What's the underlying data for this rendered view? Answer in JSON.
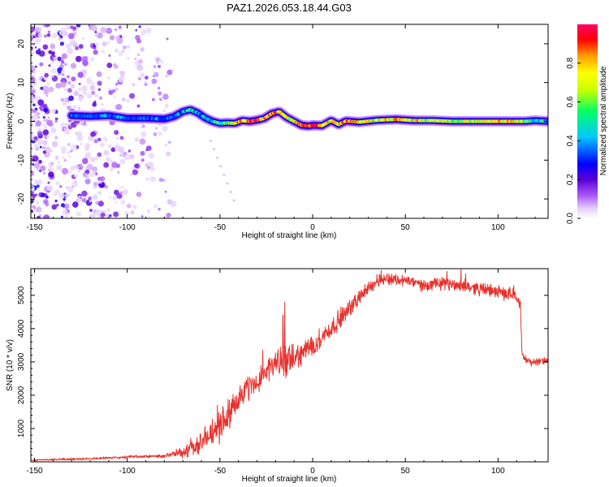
{
  "title": "PAZ1.2026.053.18.44.G03",
  "chart_data": [
    {
      "type": "heatmap",
      "title": "PAZ1.2026.053.18.44.G03",
      "xlabel": "Height of straight line (km)",
      "ylabel": "Frequency (Hz)",
      "xlim": [
        -152,
        127
      ],
      "ylim": [
        -25,
        25
      ],
      "x_ticks": [
        -150,
        -100,
        -50,
        0,
        50,
        100
      ],
      "y_ticks": [
        -20,
        -10,
        0,
        10,
        20
      ],
      "colorbar": {
        "label": "Normalized spectral amplitude",
        "range": [
          0,
          1
        ],
        "ticks": [
          0.0,
          0.2,
          0.4,
          0.6,
          0.8
        ],
        "colors": [
          "#ffffff",
          "#e6d0ff",
          "#a855f7",
          "#5b00d6",
          "#0000ff",
          "#00c8ff",
          "#00ff66",
          "#c8ff00",
          "#ffff00",
          "#ff9900",
          "#ff0000",
          "#ff0066"
        ]
      },
      "ridge": {
        "x": [
          -130,
          -120,
          -110,
          -100,
          -90,
          -80,
          -75,
          -70,
          -66,
          -62,
          -58,
          -54,
          -50,
          -46,
          -42,
          -38,
          -34,
          -30,
          -26,
          -22,
          -18,
          -14,
          -10,
          -6,
          -2,
          0,
          5,
          10,
          14,
          18,
          25,
          35,
          45,
          55,
          65,
          75,
          85,
          95,
          105,
          115,
          120,
          127
        ],
        "y": [
          1.5,
          1.3,
          1.5,
          0.8,
          0.8,
          0.6,
          1.2,
          2.5,
          3.0,
          2.2,
          0.9,
          0.0,
          -0.5,
          -0.4,
          -0.5,
          0.2,
          0.0,
          0.3,
          0.8,
          2.0,
          2.5,
          1.0,
          0.0,
          -1.0,
          -1.2,
          -1.0,
          -1.1,
          0.2,
          -0.8,
          0.1,
          -0.2,
          0.3,
          0.5,
          0.2,
          0.2,
          0.0,
          0.0,
          0.0,
          0.0,
          0.0,
          0.2,
          0.0
        ],
        "amp": [
          0.3,
          0.3,
          0.35,
          0.3,
          0.35,
          0.3,
          0.25,
          0.4,
          0.5,
          0.35,
          0.4,
          0.45,
          0.55,
          0.6,
          0.75,
          0.8,
          0.9,
          0.95,
          0.85,
          0.8,
          0.8,
          0.7,
          0.75,
          0.85,
          0.95,
          0.9,
          0.8,
          0.75,
          0.7,
          0.9,
          0.75,
          0.7,
          0.75,
          0.75,
          0.7,
          0.65,
          0.7,
          0.7,
          0.8,
          0.6,
          0.5,
          0.45
        ]
      },
      "scatter_region": {
        "x": [
          -152,
          -75
        ],
        "y": [
          -25,
          25
        ],
        "density": "decreasing with height"
      }
    },
    {
      "type": "line",
      "xlabel": "Height of straight line (km)",
      "ylabel": "SNR (10 * v/v)",
      "xlim": [
        -152,
        127
      ],
      "ylim": [
        0,
        5800
      ],
      "x_ticks": [
        -150,
        -100,
        -50,
        0,
        50,
        100
      ],
      "y_ticks": [
        1000,
        2000,
        3000,
        4000,
        5000
      ],
      "color": "#e8322e",
      "envelope": {
        "x": [
          -152,
          -130,
          -110,
          -90,
          -80,
          -75,
          -70,
          -65,
          -60,
          -55,
          -50,
          -45,
          -40,
          -35,
          -30,
          -25,
          -20,
          -15,
          -10,
          -5,
          0,
          5,
          10,
          15,
          20,
          25,
          30,
          35,
          40,
          50,
          60,
          70,
          80,
          90,
          100,
          105,
          110,
          112,
          113,
          114,
          118,
          122,
          127
        ],
        "mean": [
          50,
          80,
          120,
          160,
          180,
          220,
          300,
          450,
          600,
          800,
          1100,
          1500,
          1900,
          2200,
          2400,
          2700,
          3000,
          2950,
          3100,
          3300,
          3500,
          3750,
          4000,
          4300,
          4600,
          4950,
          5200,
          5450,
          5500,
          5450,
          5300,
          5350,
          5300,
          5200,
          5100,
          5050,
          5000,
          4800,
          3200,
          3100,
          3000,
          3000,
          3050
        ],
        "noise": [
          20,
          30,
          40,
          50,
          60,
          90,
          200,
          300,
          350,
          400,
          500,
          500,
          450,
          400,
          400,
          350,
          400,
          500,
          400,
          350,
          350,
          300,
          300,
          300,
          250,
          250,
          200,
          200,
          200,
          180,
          180,
          200,
          200,
          200,
          200,
          200,
          200,
          200,
          150,
          120,
          120,
          120,
          100
        ]
      },
      "spikes": [
        {
          "x": -15,
          "y": 4800
        },
        {
          "x": -16,
          "y": 4400
        },
        {
          "x": 80,
          "y": 5800
        },
        {
          "x": 37,
          "y": 5750
        }
      ]
    }
  ]
}
